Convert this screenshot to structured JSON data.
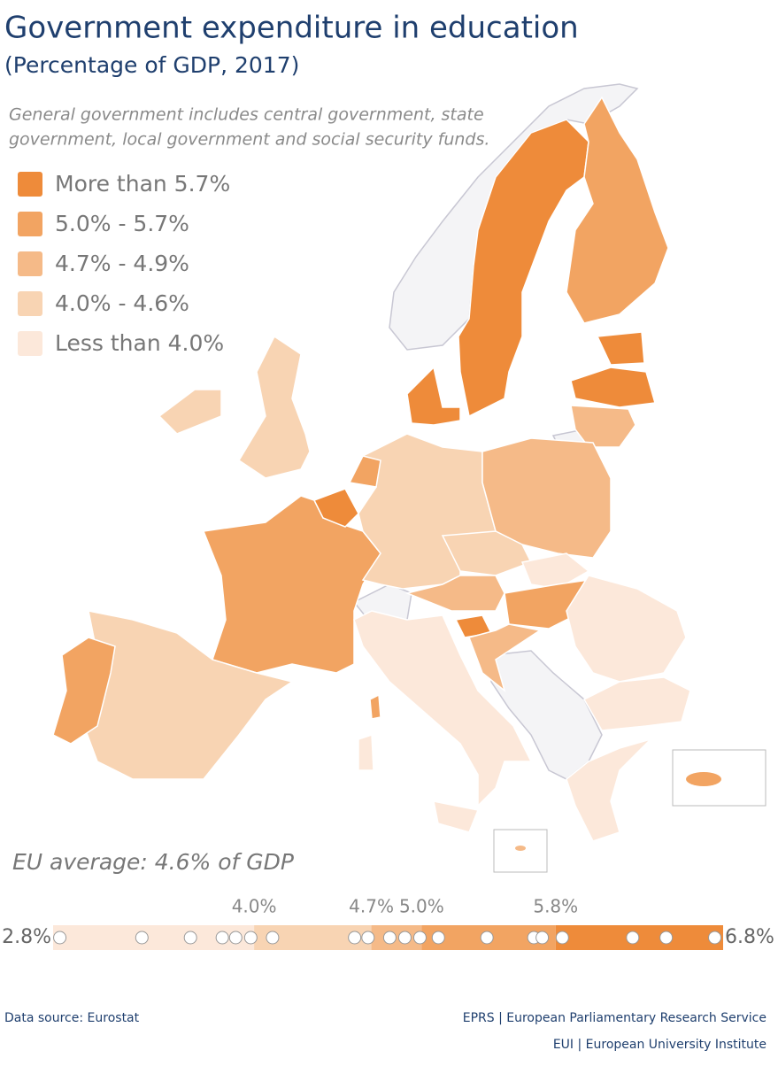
{
  "header": {
    "title": "Government expenditure in education",
    "subtitle": "(Percentage of GDP, 2017)"
  },
  "note": [
    "General government includes central government, state",
    "government, local government and social security funds."
  ],
  "legend": [
    {
      "label": "More than 5.7%",
      "color": "#ee8b3a"
    },
    {
      "label": "5.0% - 5.7%",
      "color": "#f2a462"
    },
    {
      "label": "4.7% - 4.9%",
      "color": "#f5ba88"
    },
    {
      "label": "4.0% - 4.6%",
      "color": "#f8d4b3"
    },
    {
      "label": "Less than 4.0%",
      "color": "#fce8da"
    }
  ],
  "eu_average": "EU average: 4.6% of GDP",
  "chart_data": {
    "type": "strip",
    "xlim": [
      2.8,
      6.8
    ],
    "xticks": [
      {
        "value": 2.8,
        "label": "2.8%"
      },
      {
        "value": 4.0,
        "label": "4.0%"
      },
      {
        "value": 4.7,
        "label": "4.7%"
      },
      {
        "value": 5.0,
        "label": "5.0%"
      },
      {
        "value": 5.8,
        "label": "5.8%"
      },
      {
        "value": 6.8,
        "label": "6.8%"
      }
    ],
    "band_colors": [
      "#fce8da",
      "#f8d4b3",
      "#f5ba88",
      "#f2a462",
      "#ee8b3a"
    ],
    "values": [
      2.84,
      3.33,
      3.62,
      3.81,
      3.89,
      3.98,
      4.11,
      4.6,
      4.68,
      4.81,
      4.9,
      4.99,
      5.1,
      5.39,
      5.67,
      5.72,
      5.84,
      6.26,
      6.46,
      6.75
    ]
  },
  "footer": {
    "source": "Data source: Eurostat",
    "credits": [
      "EPRS | European Parliamentary Research Service",
      "EUI | European University Institute"
    ]
  }
}
